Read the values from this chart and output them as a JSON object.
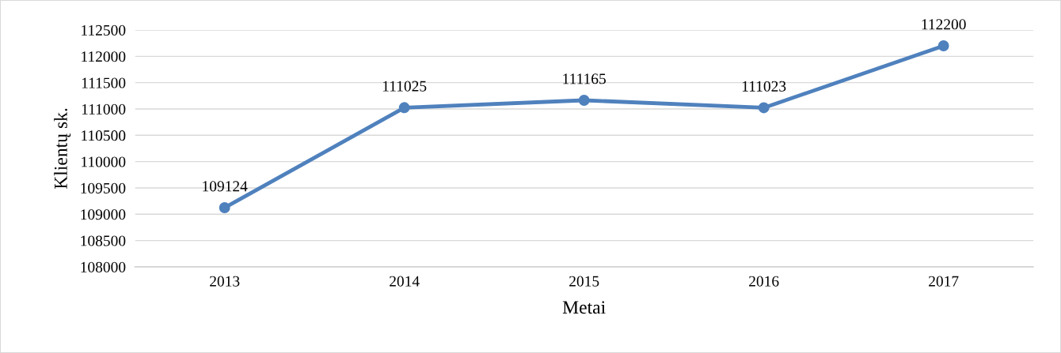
{
  "chart_data": {
    "type": "line",
    "xlabel": "Metai",
    "ylabel": "Klientų sk.",
    "categories": [
      "2013",
      "2014",
      "2015",
      "2016",
      "2017"
    ],
    "series": [
      {
        "color": "#4f81bd",
        "values": [
          109124,
          111025,
          111165,
          111023,
          112200
        ]
      }
    ],
    "ylim": [
      108000,
      112500
    ],
    "yticks": [
      108000,
      108500,
      109000,
      109500,
      110000,
      110500,
      111000,
      111500,
      112000,
      112500
    ],
    "grid": "y",
    "marker": "circle",
    "line_style": "solid",
    "data_labels": true
  }
}
